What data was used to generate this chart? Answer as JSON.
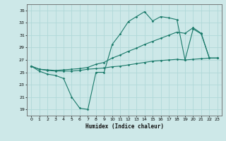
{
  "title": "",
  "xlabel": "Humidex (Indice chaleur)",
  "ylabel": "",
  "xlim": [
    -0.5,
    23.5
  ],
  "ylim": [
    18,
    36
  ],
  "yticks": [
    19,
    21,
    23,
    25,
    27,
    29,
    31,
    33,
    35
  ],
  "xticks": [
    0,
    1,
    2,
    3,
    4,
    5,
    6,
    7,
    8,
    9,
    10,
    11,
    12,
    13,
    14,
    15,
    16,
    17,
    18,
    19,
    20,
    21,
    22,
    23
  ],
  "bg_color": "#cde8e8",
  "grid_color": "#b0d8d8",
  "line_color": "#1a7a6a",
  "line1_y": [
    26.0,
    25.2,
    24.7,
    24.5,
    24.0,
    21.0,
    19.2,
    19.0,
    25.0,
    25.0,
    29.5,
    31.2,
    33.2,
    34.0,
    34.8,
    33.3,
    34.0,
    33.8,
    33.5,
    27.0,
    32.0,
    31.2,
    27.3,
    27.3
  ],
  "line2_y": [
    26.0,
    25.5,
    25.3,
    25.2,
    25.2,
    25.2,
    25.3,
    25.5,
    25.6,
    25.7,
    25.9,
    26.0,
    26.2,
    26.4,
    26.6,
    26.8,
    26.9,
    27.0,
    27.1,
    27.0,
    27.1,
    27.2,
    27.3,
    27.3
  ],
  "line3_y": [
    26.0,
    25.5,
    25.4,
    25.3,
    25.4,
    25.5,
    25.6,
    25.8,
    26.3,
    26.6,
    27.3,
    27.8,
    28.4,
    28.9,
    29.5,
    30.0,
    30.5,
    31.0,
    31.5,
    31.3,
    32.2,
    31.3,
    27.3,
    27.3
  ]
}
